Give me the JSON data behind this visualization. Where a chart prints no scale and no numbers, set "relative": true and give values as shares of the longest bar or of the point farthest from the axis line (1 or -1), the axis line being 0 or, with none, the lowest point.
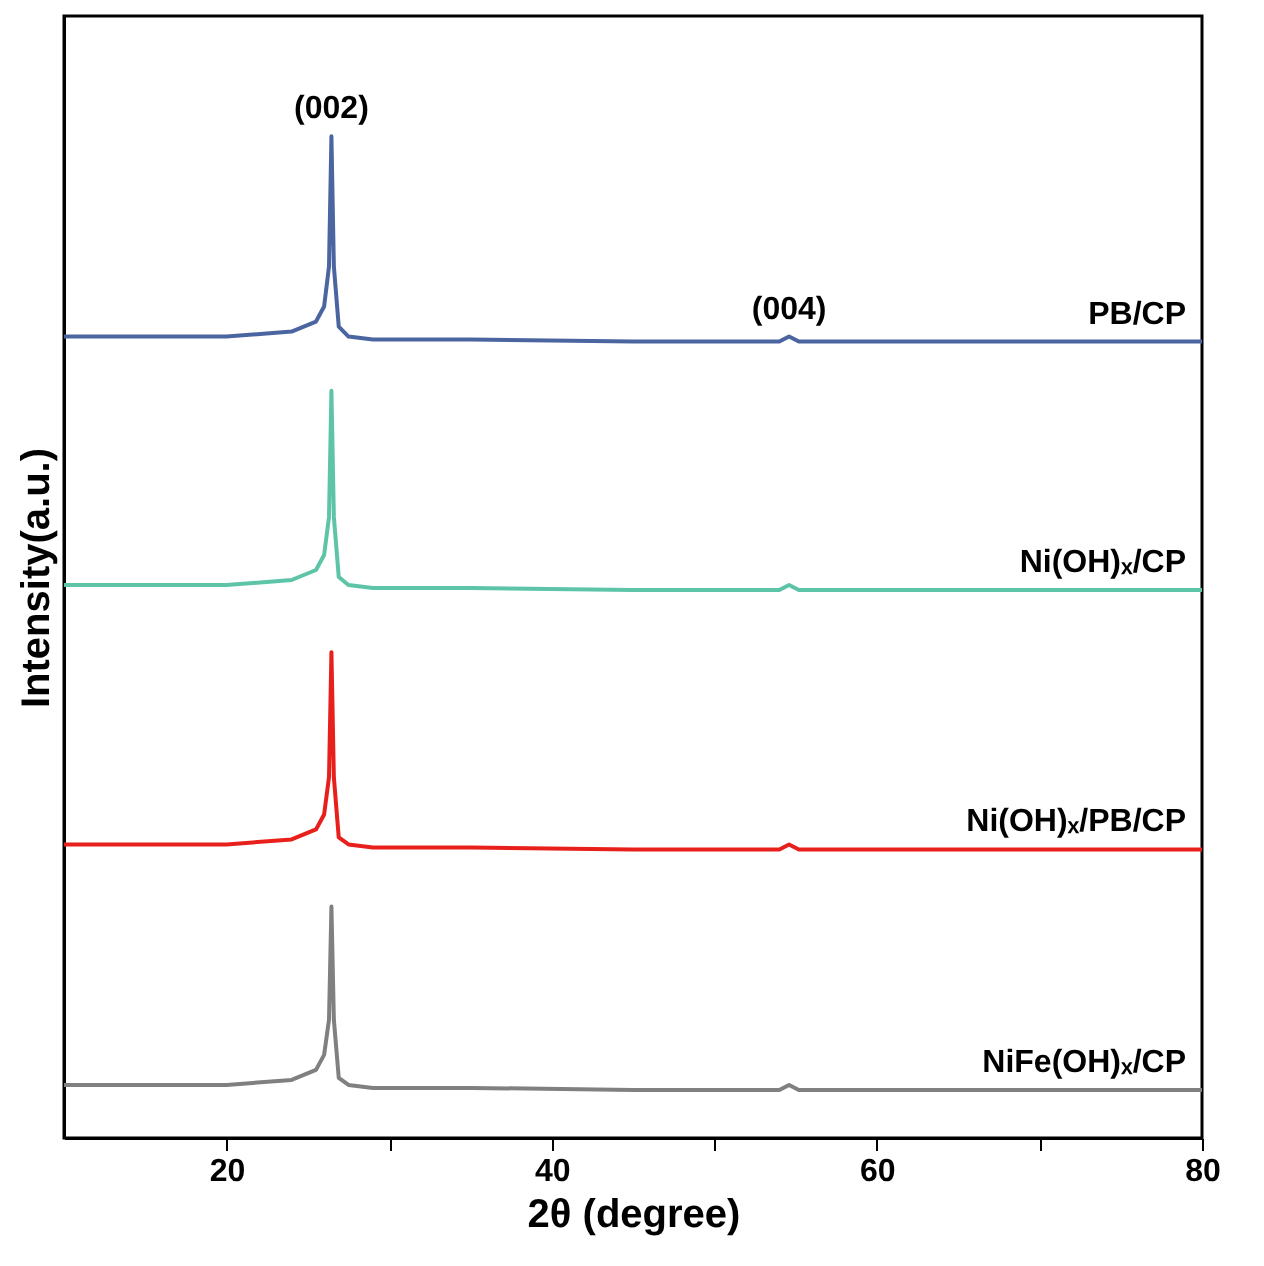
{
  "chart_data": {
    "type": "line",
    "relative": true,
    "xlabel": "2θ (degree)",
    "ylabel": "Intensity(a.u.)",
    "x": [
      10,
      20,
      24,
      25.5,
      26.0,
      26.3,
      26.45,
      26.6,
      26.9,
      27.5,
      29,
      35,
      45,
      54,
      54.6,
      55.2,
      65,
      80
    ],
    "series": [
      {
        "name": "PB/CP",
        "color": "#4a65a0",
        "values": [
          0.8,
          0.8,
          0.805,
          0.815,
          0.83,
          0.87,
          1.0,
          0.87,
          0.81,
          0.8,
          0.797,
          0.797,
          0.795,
          0.795,
          0.8,
          0.795,
          0.795,
          0.795
        ]
      },
      {
        "name": "Ni(OH)ₓ/CP",
        "color": "#5ec4a8",
        "values": [
          0.552,
          0.552,
          0.557,
          0.567,
          0.582,
          0.62,
          0.746,
          0.62,
          0.56,
          0.552,
          0.549,
          0.549,
          0.547,
          0.547,
          0.552,
          0.547,
          0.547,
          0.547
        ]
      },
      {
        "name": "Ni(OH)ₓ/PB/CP",
        "color": "#e8201c",
        "values": [
          0.293,
          0.293,
          0.298,
          0.308,
          0.323,
          0.36,
          0.485,
          0.36,
          0.3,
          0.293,
          0.29,
          0.29,
          0.288,
          0.288,
          0.293,
          0.288,
          0.288,
          0.288
        ]
      },
      {
        "name": "NiFe(OH)ₓ/CP",
        "color": "#808080",
        "values": [
          0.053,
          0.053,
          0.058,
          0.068,
          0.083,
          0.118,
          0.231,
          0.118,
          0.06,
          0.053,
          0.05,
          0.05,
          0.048,
          0.048,
          0.053,
          0.048,
          0.048,
          0.048
        ]
      }
    ],
    "xlim": [
      10,
      80
    ],
    "xticks": [
      20,
      {
        "value": 30,
        "label": null
      },
      40,
      {
        "value": 50,
        "label": null
      },
      60,
      {
        "value": 70,
        "label": null
      },
      80
    ],
    "annotations": [
      {
        "text": "(002)",
        "x": 26.45,
        "y": 1.0
      },
      {
        "text": "(004)",
        "x": 54.6,
        "y": 0.8
      }
    ],
    "grid": false,
    "line_style": "solid",
    "marker": "none"
  }
}
